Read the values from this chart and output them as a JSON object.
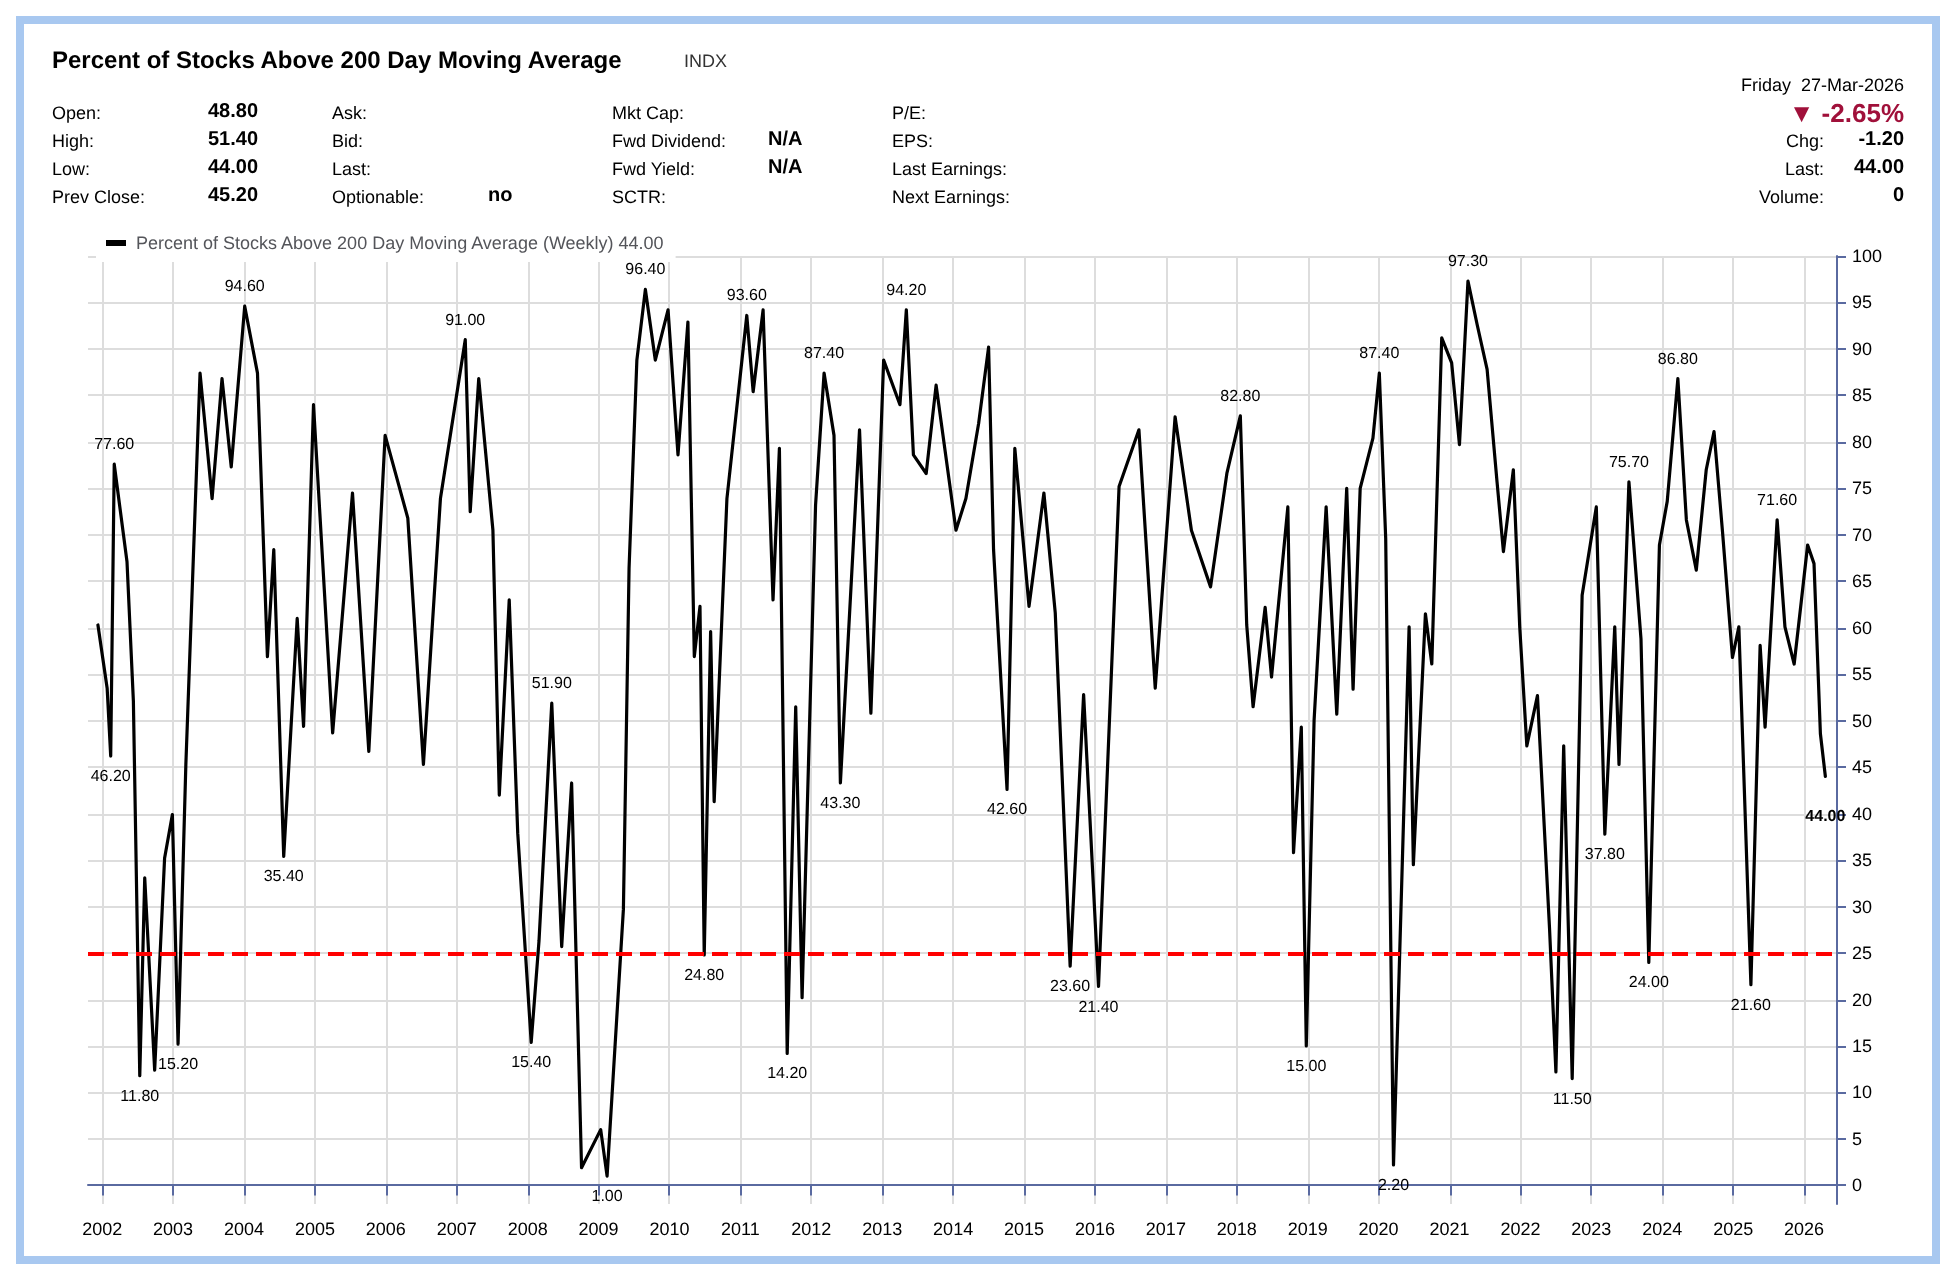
{
  "chart_data": {
    "type": "line",
    "title": "Percent of Stocks Above 200 Day Moving Average",
    "subtitle": "INDX",
    "annotations": [
      "Open:\t48.80",
      "High:\t51.40",
      "Low:\t44.00",
      "Prev Close:\t45.20",
      "Ask:",
      "Bid:",
      "Last:",
      "Optionable:\tno",
      "Mkt Cap:",
      "Fwd Dividend:\tN/A",
      "Fwd Yield:\tN/A",
      "SCTR:",
      "P/E:",
      "EPS:",
      "Last Earnings:",
      "Next Earnings:",
      "Friday  27-Mar-2026",
      "▼ -2.65%",
      "Chg:\t-1.20",
      "Last:\t44.00",
      "Volume:\t0",
      {
        "text": "77.60",
        "x": 2002.17,
        "y": 77.6
      },
      {
        "text": "46.20",
        "x": 2002.12,
        "y": 46.2
      },
      {
        "text": "11.80",
        "x": 2002.53,
        "y": 11.8
      },
      {
        "text": "15.20",
        "x": 2003.07,
        "y": 15.2
      },
      {
        "text": "94.60",
        "x": 2004.01,
        "y": 94.6
      },
      {
        "text": "35.40",
        "x": 2004.56,
        "y": 35.4
      },
      {
        "text": "91.00",
        "x": 2007.12,
        "y": 91.0
      },
      {
        "text": "15.40",
        "x": 2008.05,
        "y": 15.4
      },
      {
        "text": "51.90",
        "x": 2008.34,
        "y": 51.9
      },
      {
        "text": "1.00",
        "x": 2009.12,
        "y": 1.0
      },
      {
        "text": "96.40",
        "x": 2009.66,
        "y": 96.4
      },
      {
        "text": "24.80",
        "x": 2010.49,
        "y": 24.8
      },
      {
        "text": "93.60",
        "x": 2011.09,
        "y": 93.6
      },
      {
        "text": "14.20",
        "x": 2011.66,
        "y": 14.2
      },
      {
        "text": "87.40",
        "x": 2012.18,
        "y": 87.4
      },
      {
        "text": "43.30",
        "x": 2012.41,
        "y": 43.3
      },
      {
        "text": "94.20",
        "x": 2013.34,
        "y": 94.2
      },
      {
        "text": "42.60",
        "x": 2014.76,
        "y": 42.6
      },
      {
        "text": "23.60",
        "x": 2015.65,
        "y": 23.6
      },
      {
        "text": "21.40",
        "x": 2016.05,
        "y": 21.4
      },
      {
        "text": "82.80",
        "x": 2018.05,
        "y": 82.8
      },
      {
        "text": "15.00",
        "x": 2018.98,
        "y": 15.0
      },
      {
        "text": "87.40",
        "x": 2020.01,
        "y": 87.4
      },
      {
        "text": "2.20",
        "x": 2020.21,
        "y": 2.2
      },
      {
        "text": "97.30",
        "x": 2021.26,
        "y": 97.3
      },
      {
        "text": "11.50",
        "x": 2022.73,
        "y": 11.5
      },
      {
        "text": "37.80",
        "x": 2023.19,
        "y": 37.8
      },
      {
        "text": "75.70",
        "x": 2023.53,
        "y": 75.7
      },
      {
        "text": "24.00",
        "x": 2023.81,
        "y": 24.0
      },
      {
        "text": "86.80",
        "x": 2024.22,
        "y": 86.8
      },
      {
        "text": "21.60",
        "x": 2025.25,
        "y": 21.6
      },
      {
        "text": "71.60",
        "x": 2025.62,
        "y": 71.6
      },
      {
        "text": "44.00",
        "x": 2026.3,
        "y": 44.0
      }
    ],
    "series": [
      {
        "name": "Percent of Stocks Above 200 Day Moving Average (Weekly) 44.00",
        "color": "#000000",
        "x": [
          2001.94,
          2002.07,
          2002.12,
          2002.17,
          2002.35,
          2002.44,
          2002.53,
          2002.6,
          2002.74,
          2002.88,
          2002.99,
          2003.07,
          2003.18,
          2003.38,
          2003.55,
          2003.69,
          2003.82,
          2004.01,
          2004.19,
          2004.33,
          2004.42,
          2004.56,
          2004.75,
          2004.84,
          2004.98,
          2005.25,
          2005.53,
          2005.76,
          2005.99,
          2006.31,
          2006.53,
          2006.77,
          2007.12,
          2007.19,
          2007.31,
          2007.51,
          2007.6,
          2007.74,
          2007.86,
          2008.05,
          2008.16,
          2008.34,
          2008.48,
          2008.62,
          2008.76,
          2009.03,
          2009.12,
          2009.35,
          2009.43,
          2009.54,
          2009.66,
          2009.8,
          2009.98,
          2010.12,
          2010.26,
          2010.35,
          2010.43,
          2010.49,
          2010.58,
          2010.63,
          2010.81,
          2011.09,
          2011.18,
          2011.32,
          2011.46,
          2011.55,
          2011.66,
          2011.78,
          2011.87,
          2012.06,
          2012.18,
          2012.32,
          2012.41,
          2012.68,
          2012.84,
          2013.02,
          2013.25,
          2013.34,
          2013.44,
          2013.62,
          2013.76,
          2014.04,
          2014.18,
          2014.36,
          2014.5,
          2014.57,
          2014.76,
          2014.87,
          2015.07,
          2015.28,
          2015.44,
          2015.65,
          2015.84,
          2016.05,
          2016.34,
          2016.62,
          2016.85,
          2017.13,
          2017.36,
          2017.63,
          2017.86,
          2018.05,
          2018.14,
          2018.23,
          2018.4,
          2018.49,
          2018.72,
          2018.8,
          2018.91,
          2018.98,
          2019.09,
          2019.26,
          2019.41,
          2019.55,
          2019.64,
          2019.74,
          2019.92,
          2020.01,
          2020.1,
          2020.21,
          2020.29,
          2020.43,
          2020.49,
          2020.66,
          2020.75,
          2020.89,
          2021.03,
          2021.14,
          2021.26,
          2021.39,
          2021.53,
          2021.67,
          2021.76,
          2021.9,
          2021.99,
          2022.09,
          2022.24,
          2022.41,
          2022.5,
          2022.61,
          2022.73,
          2022.87,
          2023.07,
          2023.19,
          2023.33,
          2023.39,
          2023.53,
          2023.7,
          2023.81,
          2023.96,
          2024.07,
          2024.22,
          2024.34,
          2024.48,
          2024.62,
          2024.73,
          2024.85,
          2024.99,
          2025.08,
          2025.25,
          2025.38,
          2025.45,
          2025.62,
          2025.73,
          2025.86,
          2025.96,
          2026.05,
          2026.14,
          2026.23,
          2026.3
        ],
        "values": [
          60.3,
          53.5,
          46.2,
          77.6,
          67.1,
          52.1,
          11.8,
          33.1,
          12.4,
          35.2,
          39.9,
          15.2,
          45.3,
          87.4,
          73.9,
          86.8,
          77.3,
          94.6,
          87.4,
          56.9,
          68.4,
          35.4,
          61.0,
          49.4,
          84.0,
          48.7,
          74.5,
          46.7,
          80.7,
          71.8,
          45.3,
          73.9,
          91.0,
          72.5,
          86.8,
          70.5,
          42.0,
          63.0,
          37.9,
          15.4,
          26.3,
          51.9,
          25.7,
          43.3,
          1.9,
          6.0,
          1.0,
          29.7,
          66.4,
          88.8,
          96.4,
          88.8,
          94.2,
          78.6,
          92.9,
          56.9,
          62.3,
          24.8,
          59.6,
          41.3,
          73.9,
          93.6,
          85.4,
          94.2,
          63.0,
          79.3,
          14.2,
          51.5,
          20.2,
          73.2,
          87.4,
          80.7,
          43.3,
          81.3,
          50.8,
          88.8,
          84.0,
          94.2,
          78.6,
          76.6,
          86.1,
          70.5,
          73.9,
          82.0,
          90.2,
          68.4,
          42.6,
          79.3,
          62.3,
          74.5,
          61.6,
          23.6,
          52.8,
          21.4,
          75.2,
          81.3,
          53.5,
          82.7,
          70.5,
          64.4,
          76.6,
          82.8,
          60.3,
          51.5,
          62.2,
          54.7,
          73.0,
          35.8,
          49.3,
          15.0,
          50.0,
          73.0,
          50.7,
          75.0,
          53.4,
          75.0,
          80.4,
          87.4,
          69.6,
          2.2,
          23.0,
          60.1,
          34.5,
          61.5,
          56.1,
          91.2,
          88.5,
          79.7,
          97.3,
          92.6,
          87.8,
          75.7,
          68.2,
          77.0,
          60.1,
          47.3,
          52.7,
          27.7,
          12.2,
          47.3,
          11.5,
          63.5,
          73.0,
          37.8,
          60.1,
          45.3,
          75.7,
          58.8,
          24.0,
          68.9,
          73.6,
          86.8,
          71.6,
          66.2,
          77.0,
          81.1,
          70.3,
          56.8,
          60.1,
          21.6,
          58.1,
          49.3,
          71.6,
          60.1,
          56.1,
          62.8,
          68.9,
          66.9,
          48.6,
          44.0
        ]
      }
    ],
    "xlim": [
      2001.8,
      2026.45
    ],
    "xticks": [
      2002,
      2003,
      2004,
      2005,
      2006,
      2007,
      2008,
      2009,
      2010,
      2011,
      2012,
      2013,
      2014,
      2015,
      2016,
      2017,
      2018,
      2019,
      2020,
      2021,
      2022,
      2023,
      2024,
      2025,
      2026
    ],
    "ylim": [
      -2,
      100
    ],
    "yticks": [
      0,
      5,
      10,
      15,
      20,
      25,
      30,
      35,
      40,
      45,
      50,
      55,
      60,
      65,
      70,
      75,
      80,
      85,
      90,
      95,
      100
    ],
    "ref_lines": [
      {
        "axis": "y",
        "value": 25,
        "color": "#ff0000",
        "line_style": "dashed"
      }
    ],
    "grid": true,
    "legend": "top left",
    "line_style": "solid"
  }
}
